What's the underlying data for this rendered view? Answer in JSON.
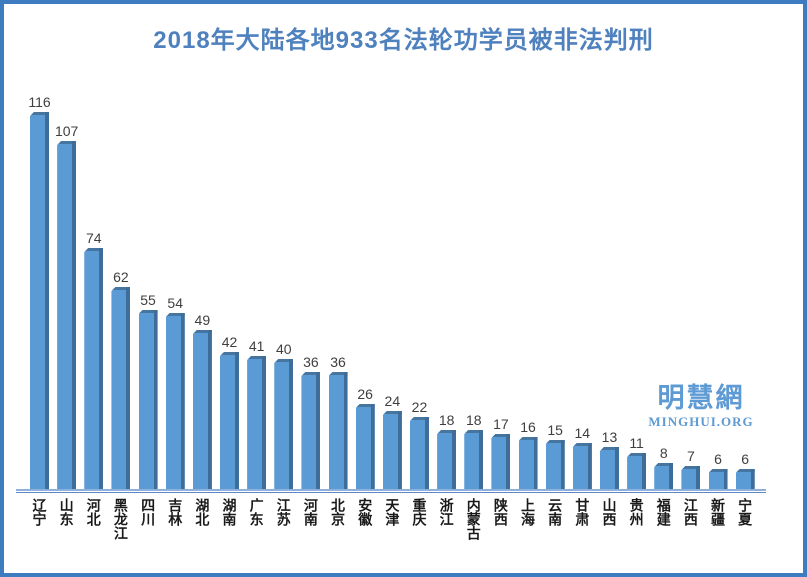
{
  "title": "2018年大陆各地933名法轮功学员被非法判刑",
  "watermark": {
    "cjk": "明慧網",
    "latin": "MINGHUI.ORG"
  },
  "colors": {
    "frame_border": "#3D7CC0",
    "title_text": "#4E81BD",
    "bar_fill": "#5B9BD5",
    "bar_side_shadow": "#3E6D99",
    "bar_top_shadow": "#46759F",
    "value_label": "#3F3F3F",
    "category_label": "#1A1A1A",
    "axis_light": "#8FB0DC",
    "axis_dark": "#5D88C4",
    "watermark_text": "#5E9AD3"
  },
  "chart_data": {
    "type": "bar",
    "title": "2018年大陆各地933名法轮功学员被非法判刑",
    "categories": [
      "辽宁",
      "山东",
      "河北",
      "黑龙江",
      "四川",
      "吉林",
      "湖北",
      "湖南",
      "广东",
      "江苏",
      "河南",
      "北京",
      "安徽",
      "天津",
      "重庆",
      "浙江",
      "内蒙古",
      "陕西",
      "上海",
      "云南",
      "甘肃",
      "山西",
      "贵州",
      "福建",
      "江西",
      "新疆",
      "宁夏"
    ],
    "values": [
      116,
      107,
      74,
      62,
      55,
      54,
      49,
      42,
      41,
      40,
      36,
      36,
      26,
      24,
      22,
      18,
      18,
      17,
      16,
      15,
      14,
      13,
      11,
      8,
      7,
      6,
      6
    ],
    "total": 933,
    "xlabel": "",
    "ylabel": "",
    "ylim": [
      0,
      120
    ],
    "grid": false,
    "legend": null,
    "data_labels": "above bars",
    "category_label_orientation": "vertical"
  }
}
